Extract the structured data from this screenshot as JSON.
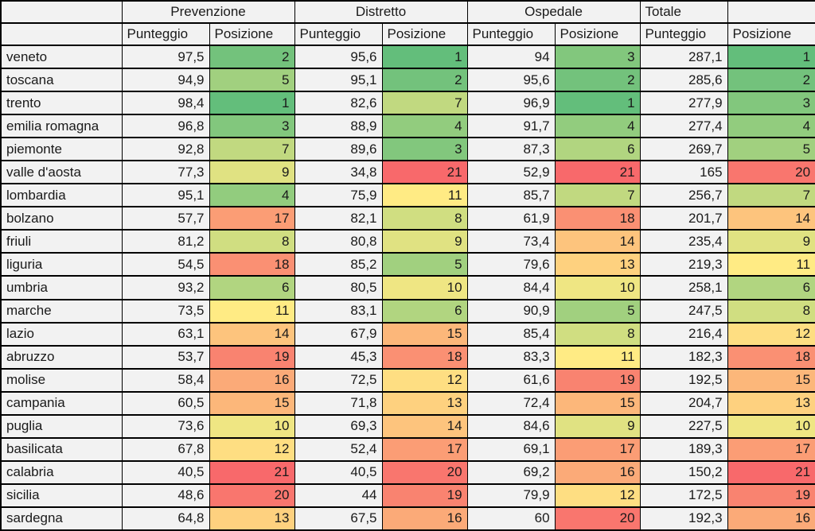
{
  "chart_data": {
    "type": "table",
    "description": "Ranking table of Italian regions with health-area scores; Posizione cells are heat-mapped green (best rank 1) to red (worst rank 21)",
    "column_groups": [
      "Prevenzione",
      "Distretto",
      "Ospedale",
      "Totale"
    ],
    "sub_columns": [
      "Punteggio",
      "Posizione"
    ],
    "score_order": [
      "Prevenzione",
      "Distretto",
      "Ospedale",
      "Totale"
    ],
    "rows": [
      {
        "region": "veneto",
        "scores": [
          "97,5",
          "95,6",
          "94",
          "287,1"
        ],
        "ranks": [
          2,
          1,
          3,
          1
        ]
      },
      {
        "region": "toscana",
        "scores": [
          "94,9",
          "95,1",
          "95,6",
          "285,6"
        ],
        "ranks": [
          5,
          2,
          2,
          2
        ]
      },
      {
        "region": "trento",
        "scores": [
          "98,4",
          "82,6",
          "96,9",
          "277,9"
        ],
        "ranks": [
          1,
          7,
          1,
          3
        ]
      },
      {
        "region": "emilia romagna",
        "scores": [
          "96,8",
          "88,9",
          "91,7",
          "277,4"
        ],
        "ranks": [
          3,
          4,
          4,
          4
        ]
      },
      {
        "region": "piemonte",
        "scores": [
          "92,8",
          "89,6",
          "87,3",
          "269,7"
        ],
        "ranks": [
          7,
          3,
          6,
          5
        ]
      },
      {
        "region": "valle d'aosta",
        "scores": [
          "77,3",
          "34,8",
          "52,9",
          "165"
        ],
        "ranks": [
          9,
          21,
          21,
          20
        ]
      },
      {
        "region": "lombardia",
        "scores": [
          "95,1",
          "75,9",
          "85,7",
          "256,7"
        ],
        "ranks": [
          4,
          11,
          7,
          7
        ]
      },
      {
        "region": "bolzano",
        "scores": [
          "57,7",
          "82,1",
          "61,9",
          "201,7"
        ],
        "ranks": [
          17,
          8,
          18,
          14
        ]
      },
      {
        "region": "friuli",
        "scores": [
          "81,2",
          "80,8",
          "73,4",
          "235,4"
        ],
        "ranks": [
          8,
          9,
          14,
          9
        ]
      },
      {
        "region": "liguria",
        "scores": [
          "54,5",
          "85,2",
          "79,6",
          "219,3"
        ],
        "ranks": [
          18,
          5,
          13,
          11
        ]
      },
      {
        "region": "umbria",
        "scores": [
          "93,2",
          "80,5",
          "84,4",
          "258,1"
        ],
        "ranks": [
          6,
          10,
          10,
          6
        ]
      },
      {
        "region": "marche",
        "scores": [
          "73,5",
          "83,1",
          "90,9",
          "247,5"
        ],
        "ranks": [
          11,
          6,
          5,
          8
        ]
      },
      {
        "region": "lazio",
        "scores": [
          "63,1",
          "67,9",
          "85,4",
          "216,4"
        ],
        "ranks": [
          14,
          15,
          8,
          12
        ]
      },
      {
        "region": "abruzzo",
        "scores": [
          "53,7",
          "45,3",
          "83,3",
          "182,3"
        ],
        "ranks": [
          19,
          18,
          11,
          18
        ]
      },
      {
        "region": "molise",
        "scores": [
          "58,4",
          "72,5",
          "61,6",
          "192,5"
        ],
        "ranks": [
          16,
          12,
          19,
          15
        ]
      },
      {
        "region": "campania",
        "scores": [
          "60,5",
          "71,8",
          "72,4",
          "204,7"
        ],
        "ranks": [
          15,
          13,
          15,
          13
        ]
      },
      {
        "region": "puglia",
        "scores": [
          "73,6",
          "69,3",
          "84,6",
          "227,5"
        ],
        "ranks": [
          10,
          14,
          9,
          10
        ]
      },
      {
        "region": "basilicata",
        "scores": [
          "67,8",
          "52,4",
          "69,1",
          "189,3"
        ],
        "ranks": [
          12,
          17,
          17,
          17
        ]
      },
      {
        "region": "calabria",
        "scores": [
          "40,5",
          "40,5",
          "69,2",
          "150,2"
        ],
        "ranks": [
          21,
          20,
          16,
          21
        ]
      },
      {
        "region": "sicilia",
        "scores": [
          "48,6",
          "44",
          "79,9",
          "172,5"
        ],
        "ranks": [
          20,
          19,
          12,
          19
        ]
      },
      {
        "region": "sardegna",
        "scores": [
          "64,8",
          "67,5",
          "60",
          "192,3"
        ],
        "ranks": [
          13,
          16,
          20,
          16
        ]
      }
    ]
  },
  "colors": {
    "cell_background": "#F2F2F2",
    "grid_border": "#000000",
    "rank_scale": {
      "best_green": "#63BE7B",
      "mid_yellow": "#FFEB84",
      "worst_red": "#F8696B"
    },
    "rank_colors": {
      "1": "#63BE7B",
      "2": "#73C27C",
      "3": "#82C77D",
      "4": "#92CC7E",
      "5": "#A1D07F",
      "6": "#B1D580",
      "7": "#C1D980",
      "8": "#D0DE81",
      "9": "#E0E282",
      "10": "#EFE683",
      "11": "#FFEB84",
      "12": "#FEDE82",
      "13": "#FED17F",
      "14": "#FDC47D",
      "15": "#FCB77A",
      "16": "#FBAA78",
      "17": "#FB9D75",
      "18": "#FA9073",
      "19": "#F98370",
      "20": "#F9766E",
      "21": "#F8696B"
    }
  }
}
